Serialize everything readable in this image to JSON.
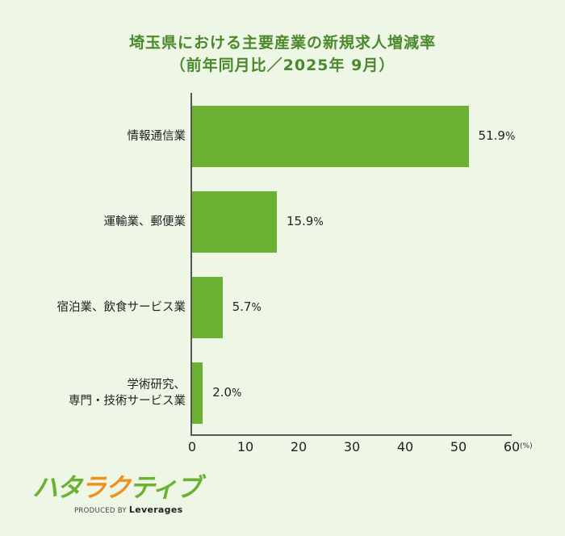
{
  "chart_data": {
    "type": "bar",
    "orientation": "horizontal",
    "title": "埼玉県における主要産業の新規求人増減率",
    "subtitle": "（前年同月比／2025年 9月）",
    "categories": [
      "情報通信業",
      "運輸業、郵便業",
      "宿泊業、飲食サービス業",
      "学術研究、専門・技術サービス業"
    ],
    "category_lines": [
      [
        "情報通信業"
      ],
      [
        "運輸業、郵便業"
      ],
      [
        "宿泊業、飲食サービス業"
      ],
      [
        "学術研究、",
        "専門・技術サービス業"
      ]
    ],
    "values": [
      51.9,
      15.9,
      5.7,
      2.0
    ],
    "value_labels": [
      "51.9",
      "15.9",
      "5.7",
      "2.0"
    ],
    "value_suffix": "%",
    "xlabel": "",
    "ylabel": "",
    "x_unit": "(%)",
    "xlim": [
      0,
      60
    ],
    "x_ticks": [
      "0",
      "10",
      "20",
      "30",
      "40",
      "50",
      "60"
    ],
    "grid": false,
    "legend": null,
    "bar_color": "#6cb232"
  },
  "colors": {
    "background": "#eef6e6",
    "title": "#4b8a2c",
    "bar": "#6cb232",
    "logo_green": "#6cb232",
    "logo_orange": "#f0901e"
  },
  "logo": {
    "chars": [
      {
        "c": "ハ",
        "color": "g"
      },
      {
        "c": "タ",
        "color": "g"
      },
      {
        "c": "ラ",
        "color": "o"
      },
      {
        "c": "ク",
        "color": "o"
      },
      {
        "c": "テ",
        "color": "g"
      },
      {
        "c": "ィ",
        "color": "g"
      },
      {
        "c": "ブ",
        "color": "g"
      }
    ],
    "produced_by": "PRODUCED BY",
    "company": "Leverages"
  }
}
